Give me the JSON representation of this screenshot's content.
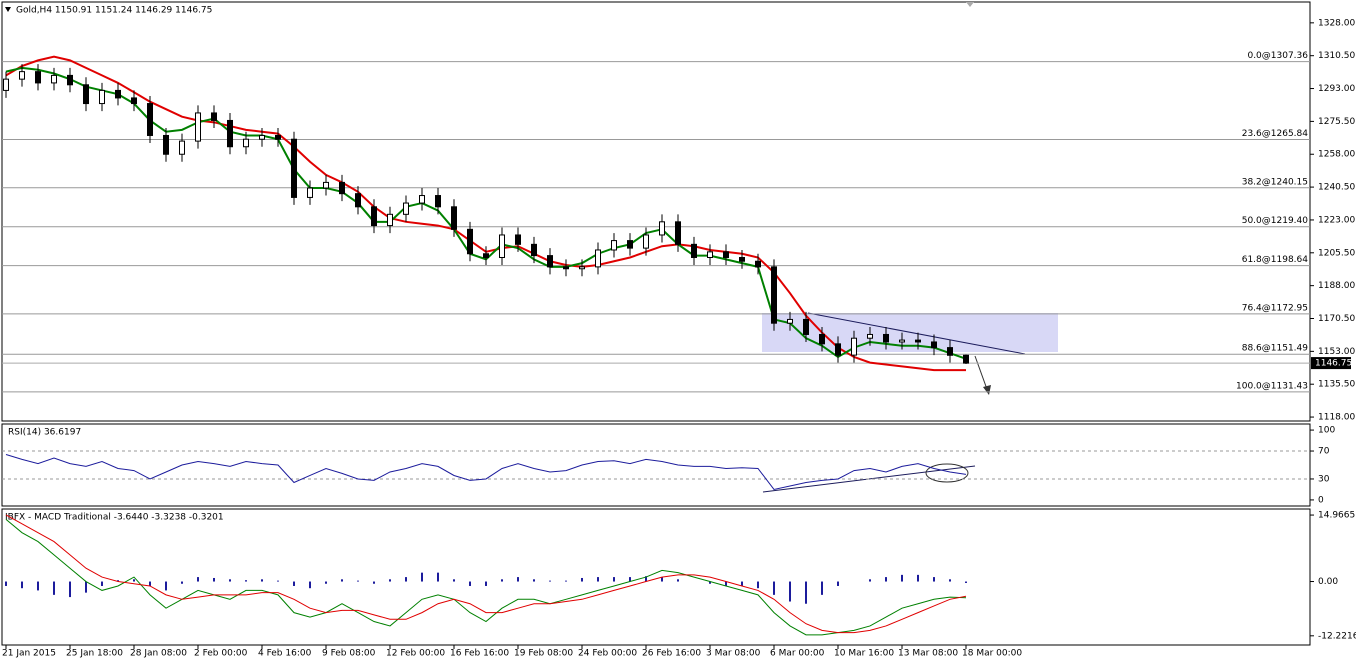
{
  "chart_data": [
    {
      "type": "candlestick",
      "title": "Gold,H4  1150.91 1151.24 1146.29 1146.75",
      "xlim": [
        -0.25,
        81.5
      ],
      "ylim": [
        1115.9,
        1339.1
      ],
      "yticks": [
        {
          "value": 1328,
          "label": "1328.00"
        },
        {
          "value": 1310.5,
          "label": "1310.50"
        },
        {
          "value": 1293,
          "label": "1293.00"
        },
        {
          "value": 1275.5,
          "label": "1275.50"
        },
        {
          "value": 1258,
          "label": "1258.00"
        },
        {
          "value": 1240.5,
          "label": "1240.50"
        },
        {
          "value": 1223,
          "label": "1223.00"
        },
        {
          "value": 1205.5,
          "label": "1205.50"
        },
        {
          "value": 1188,
          "label": "1188.00"
        },
        {
          "value": 1170.5,
          "label": "1170.50"
        },
        {
          "value": 1153,
          "label": "1153.00"
        },
        {
          "value": 1135.5,
          "label": "1135.50"
        },
        {
          "value": 1118,
          "label": "1118.00"
        }
      ],
      "open": [
        1292,
        1298,
        1302,
        1296,
        1300,
        1295,
        1285,
        1292,
        1288,
        1285,
        1268,
        1258,
        1265,
        1280,
        1276,
        1262,
        1266,
        1268,
        1266,
        1235,
        1240,
        1243,
        1237,
        1230,
        1220,
        1226,
        1232,
        1236,
        1230,
        1218,
        1205,
        1203,
        1215,
        1210,
        1204,
        1198,
        1197,
        1198,
        1207,
        1212,
        1208,
        1215,
        1222,
        1210,
        1203,
        1206,
        1203,
        1201,
        1198,
        1168,
        1170,
        1162,
        1157,
        1151,
        1160,
        1162,
        1158,
        1159,
        1158,
        1155,
        1150.91
      ],
      "high": [
        1302,
        1306,
        1306,
        1304,
        1304,
        1299,
        1296,
        1296,
        1292,
        1289,
        1272,
        1269,
        1284,
        1284,
        1280,
        1270,
        1272,
        1272,
        1270,
        1244,
        1247,
        1247,
        1241,
        1234,
        1230,
        1236,
        1240,
        1240,
        1234,
        1222,
        1209,
        1219,
        1219,
        1214,
        1208,
        1202,
        1202,
        1211,
        1216,
        1216,
        1219,
        1226,
        1226,
        1214,
        1210,
        1210,
        1207,
        1205,
        1202,
        1174,
        1174,
        1166,
        1161,
        1164,
        1166,
        1166,
        1163,
        1163,
        1162,
        1159,
        1151.24
      ],
      "low": [
        1288,
        1294,
        1292,
        1292,
        1291,
        1281,
        1281,
        1284,
        1281,
        1264,
        1254,
        1254,
        1261,
        1272,
        1258,
        1258,
        1262,
        1262,
        1231,
        1231,
        1236,
        1233,
        1226,
        1216,
        1216,
        1222,
        1228,
        1226,
        1214,
        1201,
        1199,
        1199,
        1206,
        1200,
        1194,
        1193,
        1193,
        1194,
        1203,
        1204,
        1204,
        1211,
        1206,
        1199,
        1199,
        1199,
        1197,
        1194,
        1164,
        1164,
        1158,
        1153,
        1147,
        1147,
        1156,
        1154,
        1154,
        1154,
        1151,
        1147,
        1146.29
      ],
      "close": [
        1298,
        1302,
        1296,
        1300,
        1295,
        1285,
        1292,
        1288,
        1285,
        1268,
        1258,
        1265,
        1280,
        1276,
        1262,
        1266,
        1268,
        1266,
        1235,
        1240,
        1243,
        1237,
        1230,
        1220,
        1226,
        1232,
        1236,
        1230,
        1218,
        1205,
        1203,
        1215,
        1210,
        1204,
        1198,
        1197,
        1198,
        1207,
        1212,
        1208,
        1215,
        1222,
        1210,
        1203,
        1206,
        1203,
        1201,
        1198,
        1168,
        1170,
        1162,
        1157,
        1151,
        1160,
        1162,
        1158,
        1159,
        1158,
        1155,
        1150.91,
        1146.75
      ],
      "moving_averages": [
        {
          "color": "#e00000",
          "values": [
            1300,
            1305,
            1308,
            1310,
            1308,
            1304,
            1300,
            1296,
            1291,
            1286,
            1282,
            1278,
            1276,
            1275,
            1273,
            1271,
            1270,
            1269,
            1262,
            1254,
            1247,
            1243,
            1238,
            1230,
            1224,
            1222,
            1221,
            1220,
            1218,
            1212,
            1206,
            1208,
            1209,
            1205,
            1201,
            1199,
            1198,
            1199,
            1201,
            1203,
            1206,
            1209,
            1210,
            1209,
            1207,
            1206,
            1205,
            1203,
            1195,
            1184,
            1172,
            1163,
            1155,
            1150,
            1147,
            1146,
            1145,
            1144,
            1143,
            1143,
            1143
          ]
        },
        {
          "color": "#008000",
          "values": [
            1302,
            1304,
            1303,
            1301,
            1298,
            1294,
            1292,
            1290,
            1285,
            1276,
            1270,
            1271,
            1275,
            1277,
            1270,
            1268,
            1268,
            1266,
            1250,
            1240,
            1240,
            1238,
            1232,
            1222,
            1222,
            1230,
            1232,
            1228,
            1218,
            1205,
            1202,
            1210,
            1208,
            1202,
            1198,
            1198,
            1200,
            1205,
            1208,
            1210,
            1216,
            1218,
            1210,
            1204,
            1204,
            1202,
            1200,
            1198,
            1170,
            1168,
            1160,
            1156,
            1150,
            1155,
            1158,
            1157,
            1156,
            1156,
            1155,
            1152,
            1149
          ]
        }
      ],
      "fib_levels": [
        {
          "value": 1307.36,
          "label": "0.0@1307.36"
        },
        {
          "value": 1265.84,
          "label": "23.6@1265.84"
        },
        {
          "value": 1240.15,
          "label": "38.2@1240.15"
        },
        {
          "value": 1219.4,
          "label": "50.0@1219.40"
        },
        {
          "value": 1198.64,
          "label": "61.8@1198.64"
        },
        {
          "value": 1172.95,
          "label": "76.4@1172.95"
        },
        {
          "value": 1151.49,
          "label": "88.6@1151.49"
        },
        {
          "value": 1131.43,
          "label": "100.0@1131.43"
        }
      ],
      "current_price": 1146.75
    },
    {
      "type": "line",
      "title": "RSI(14) 36.6197",
      "color": "#1c1c9c",
      "xlim": [
        -0.25,
        81.5
      ],
      "ylim": [
        -8.7,
        108.7
      ],
      "yticks": [
        0,
        30,
        70,
        100
      ],
      "levels": [
        30,
        70
      ],
      "values": [
        65,
        58,
        52,
        60,
        52,
        48,
        55,
        45,
        42,
        30,
        40,
        50,
        55,
        52,
        48,
        55,
        52,
        50,
        25,
        35,
        45,
        38,
        30,
        28,
        40,
        45,
        52,
        48,
        35,
        28,
        30,
        45,
        52,
        45,
        40,
        42,
        50,
        55,
        56,
        52,
        58,
        55,
        50,
        48,
        48,
        45,
        46,
        45,
        15,
        20,
        25,
        28,
        30,
        42,
        45,
        40,
        48,
        52,
        45,
        40,
        36.6197
      ]
    },
    {
      "type": "macd",
      "title": "IBFX - MACD Traditional -3.6440 -3.3238 -0.3201",
      "xlim": [
        -0.25,
        81.5
      ],
      "ylim": [
        -14.29,
        16.33
      ],
      "yticks": [
        14.9665,
        {
          "value": 0,
          "label": "0.00"
        },
        -12.2216
      ],
      "xticks": [
        {
          "value": 0,
          "label": "21 Jan 2015"
        },
        {
          "value": 4,
          "label": "25 Jan 18:00"
        },
        {
          "value": 8,
          "label": "28 Jan 08:00"
        },
        {
          "value": 12,
          "label": "2 Feb 00:00"
        },
        {
          "value": 16,
          "label": "4 Feb 16:00"
        },
        {
          "value": 20,
          "label": "9 Feb 08:00"
        },
        {
          "value": 24,
          "label": "12 Feb 00:00"
        },
        {
          "value": 28,
          "label": "16 Feb 16:00"
        },
        {
          "value": 32,
          "label": "19 Feb 08:00"
        },
        {
          "value": 36,
          "label": "24 Feb 00:00"
        },
        {
          "value": 40,
          "label": "26 Feb 16:00"
        },
        {
          "value": 44,
          "label": "3 Mar 08:00"
        },
        {
          "value": 48,
          "label": "6 Mar 00:00"
        },
        {
          "value": 52,
          "label": "10 Mar 16:00"
        },
        {
          "value": 56,
          "label": "13 Mar 08:00"
        },
        {
          "value": 60,
          "label": "18 Mar 00:00"
        }
      ],
      "histogram": {
        "color": "#1c1c9c",
        "values": [
          -1,
          -1.5,
          -2,
          -3,
          -3.5,
          -2.5,
          -1,
          0.3,
          0.5,
          -1,
          -2,
          -0.5,
          1,
          0.8,
          0.5,
          0.3,
          0.5,
          0.2,
          -1,
          -1.5,
          -0.5,
          0.5,
          0.2,
          -0.5,
          0.5,
          1,
          2,
          2,
          0.5,
          -1,
          -1,
          0.5,
          1,
          0.5,
          0.2,
          0.2,
          0.8,
          1,
          1,
          1,
          1.2,
          1,
          0.5,
          0,
          -0.5,
          -1,
          -1,
          -1.5,
          -3,
          -4.5,
          -5,
          -3,
          -1,
          0,
          0.5,
          1,
          1.5,
          1.5,
          1,
          0.5,
          -0.3201
        ]
      },
      "macd": {
        "color": "#008000",
        "values": [
          14,
          11,
          9,
          6,
          3,
          0,
          -2,
          -1,
          1,
          -3,
          -6,
          -4,
          -2,
          -3,
          -4,
          -2,
          -2,
          -3,
          -7,
          -8,
          -7,
          -5,
          -7,
          -9,
          -10,
          -7,
          -4,
          -3,
          -4,
          -7,
          -9,
          -6,
          -4,
          -4,
          -5,
          -4,
          -3,
          -2,
          -1,
          0,
          1,
          2.5,
          2,
          1,
          0,
          -1,
          -2,
          -3,
          -7,
          -10,
          -12,
          -12,
          -11.5,
          -11,
          -10,
          -8,
          -6,
          -5,
          -4,
          -3.5,
          -3.644
        ]
      },
      "signal": {
        "color": "#e00000",
        "values": [
          15,
          13,
          11,
          9,
          6,
          3,
          1,
          0,
          -0.5,
          -1,
          -3,
          -4,
          -3.5,
          -3,
          -3,
          -3,
          -2.5,
          -2.5,
          -4,
          -6,
          -7,
          -6.5,
          -6.5,
          -7.5,
          -8.5,
          -8.5,
          -7,
          -5,
          -4,
          -5,
          -7,
          -7,
          -6,
          -5,
          -5,
          -4.5,
          -4,
          -3,
          -2,
          -1,
          0,
          1,
          1.5,
          1.5,
          1,
          0,
          -1,
          -2,
          -4,
          -7,
          -9.5,
          -11,
          -11.5,
          -11.5,
          -11,
          -10,
          -8.5,
          -7,
          -5.5,
          -4,
          -3.3238
        ]
      }
    }
  ]
}
